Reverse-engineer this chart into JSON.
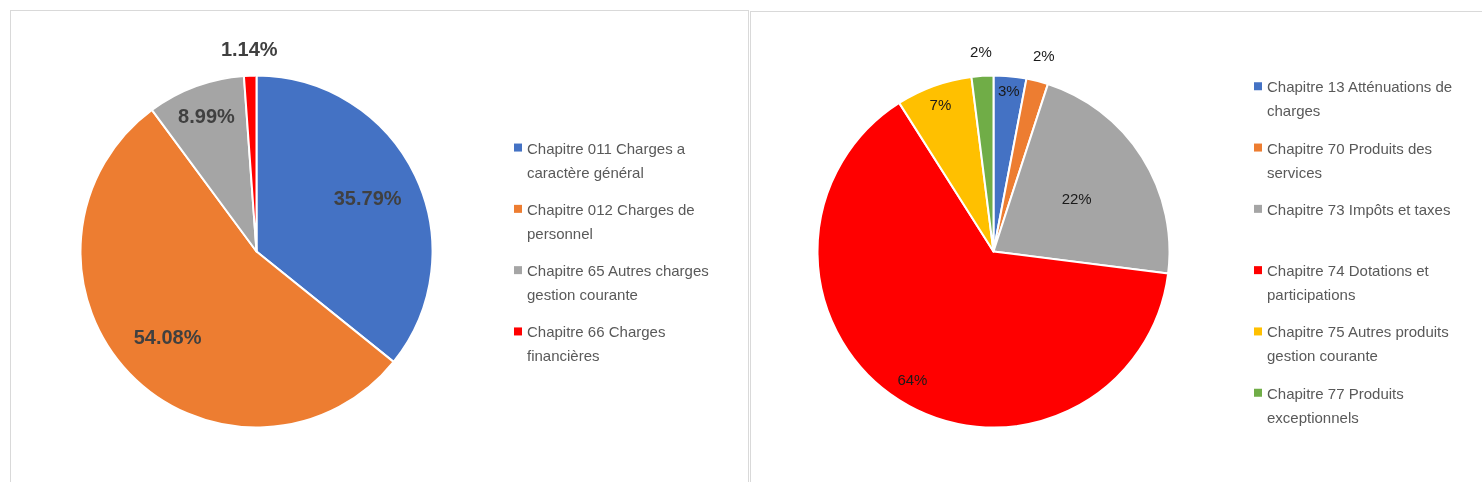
{
  "chart_data": [
    {
      "type": "pie",
      "categories": [
        "Chapitre 011 Charges a caractère général",
        "Chapitre 012 Charges de personnel",
        "Chapitre 65 Autres charges gestion courante",
        "Chapitre 66 Charges financières"
      ],
      "values": [
        35.79,
        54.08,
        8.99,
        1.14
      ],
      "colors": [
        "#4472c4",
        "#ed7d31",
        "#a5a5a5",
        "#ff0000"
      ],
      "value_labels": [
        "35.79%",
        "54.08%",
        "8.99%",
        "1.14%"
      ],
      "legend": "right"
    },
    {
      "type": "pie",
      "categories": [
        "Chapitre 13 Atténuations de charges",
        "Chapitre 70 Produits des services",
        "Chapitre 73 Impôts et taxes",
        "Chapitre 74 Dotations et participations",
        "Chapitre 75 Autres produits gestion courante",
        "Chapitre 77 Produits exceptionnels"
      ],
      "values": [
        3,
        2,
        22,
        64,
        7,
        2
      ],
      "colors": [
        "#4472c4",
        "#ed7d31",
        "#a5a5a5",
        "#ff0000",
        "#ffc000",
        "#70ad47"
      ],
      "value_labels": [
        "3%",
        "2%",
        "22%",
        "64%",
        "7%",
        "2%"
      ],
      "legend": "right"
    }
  ]
}
